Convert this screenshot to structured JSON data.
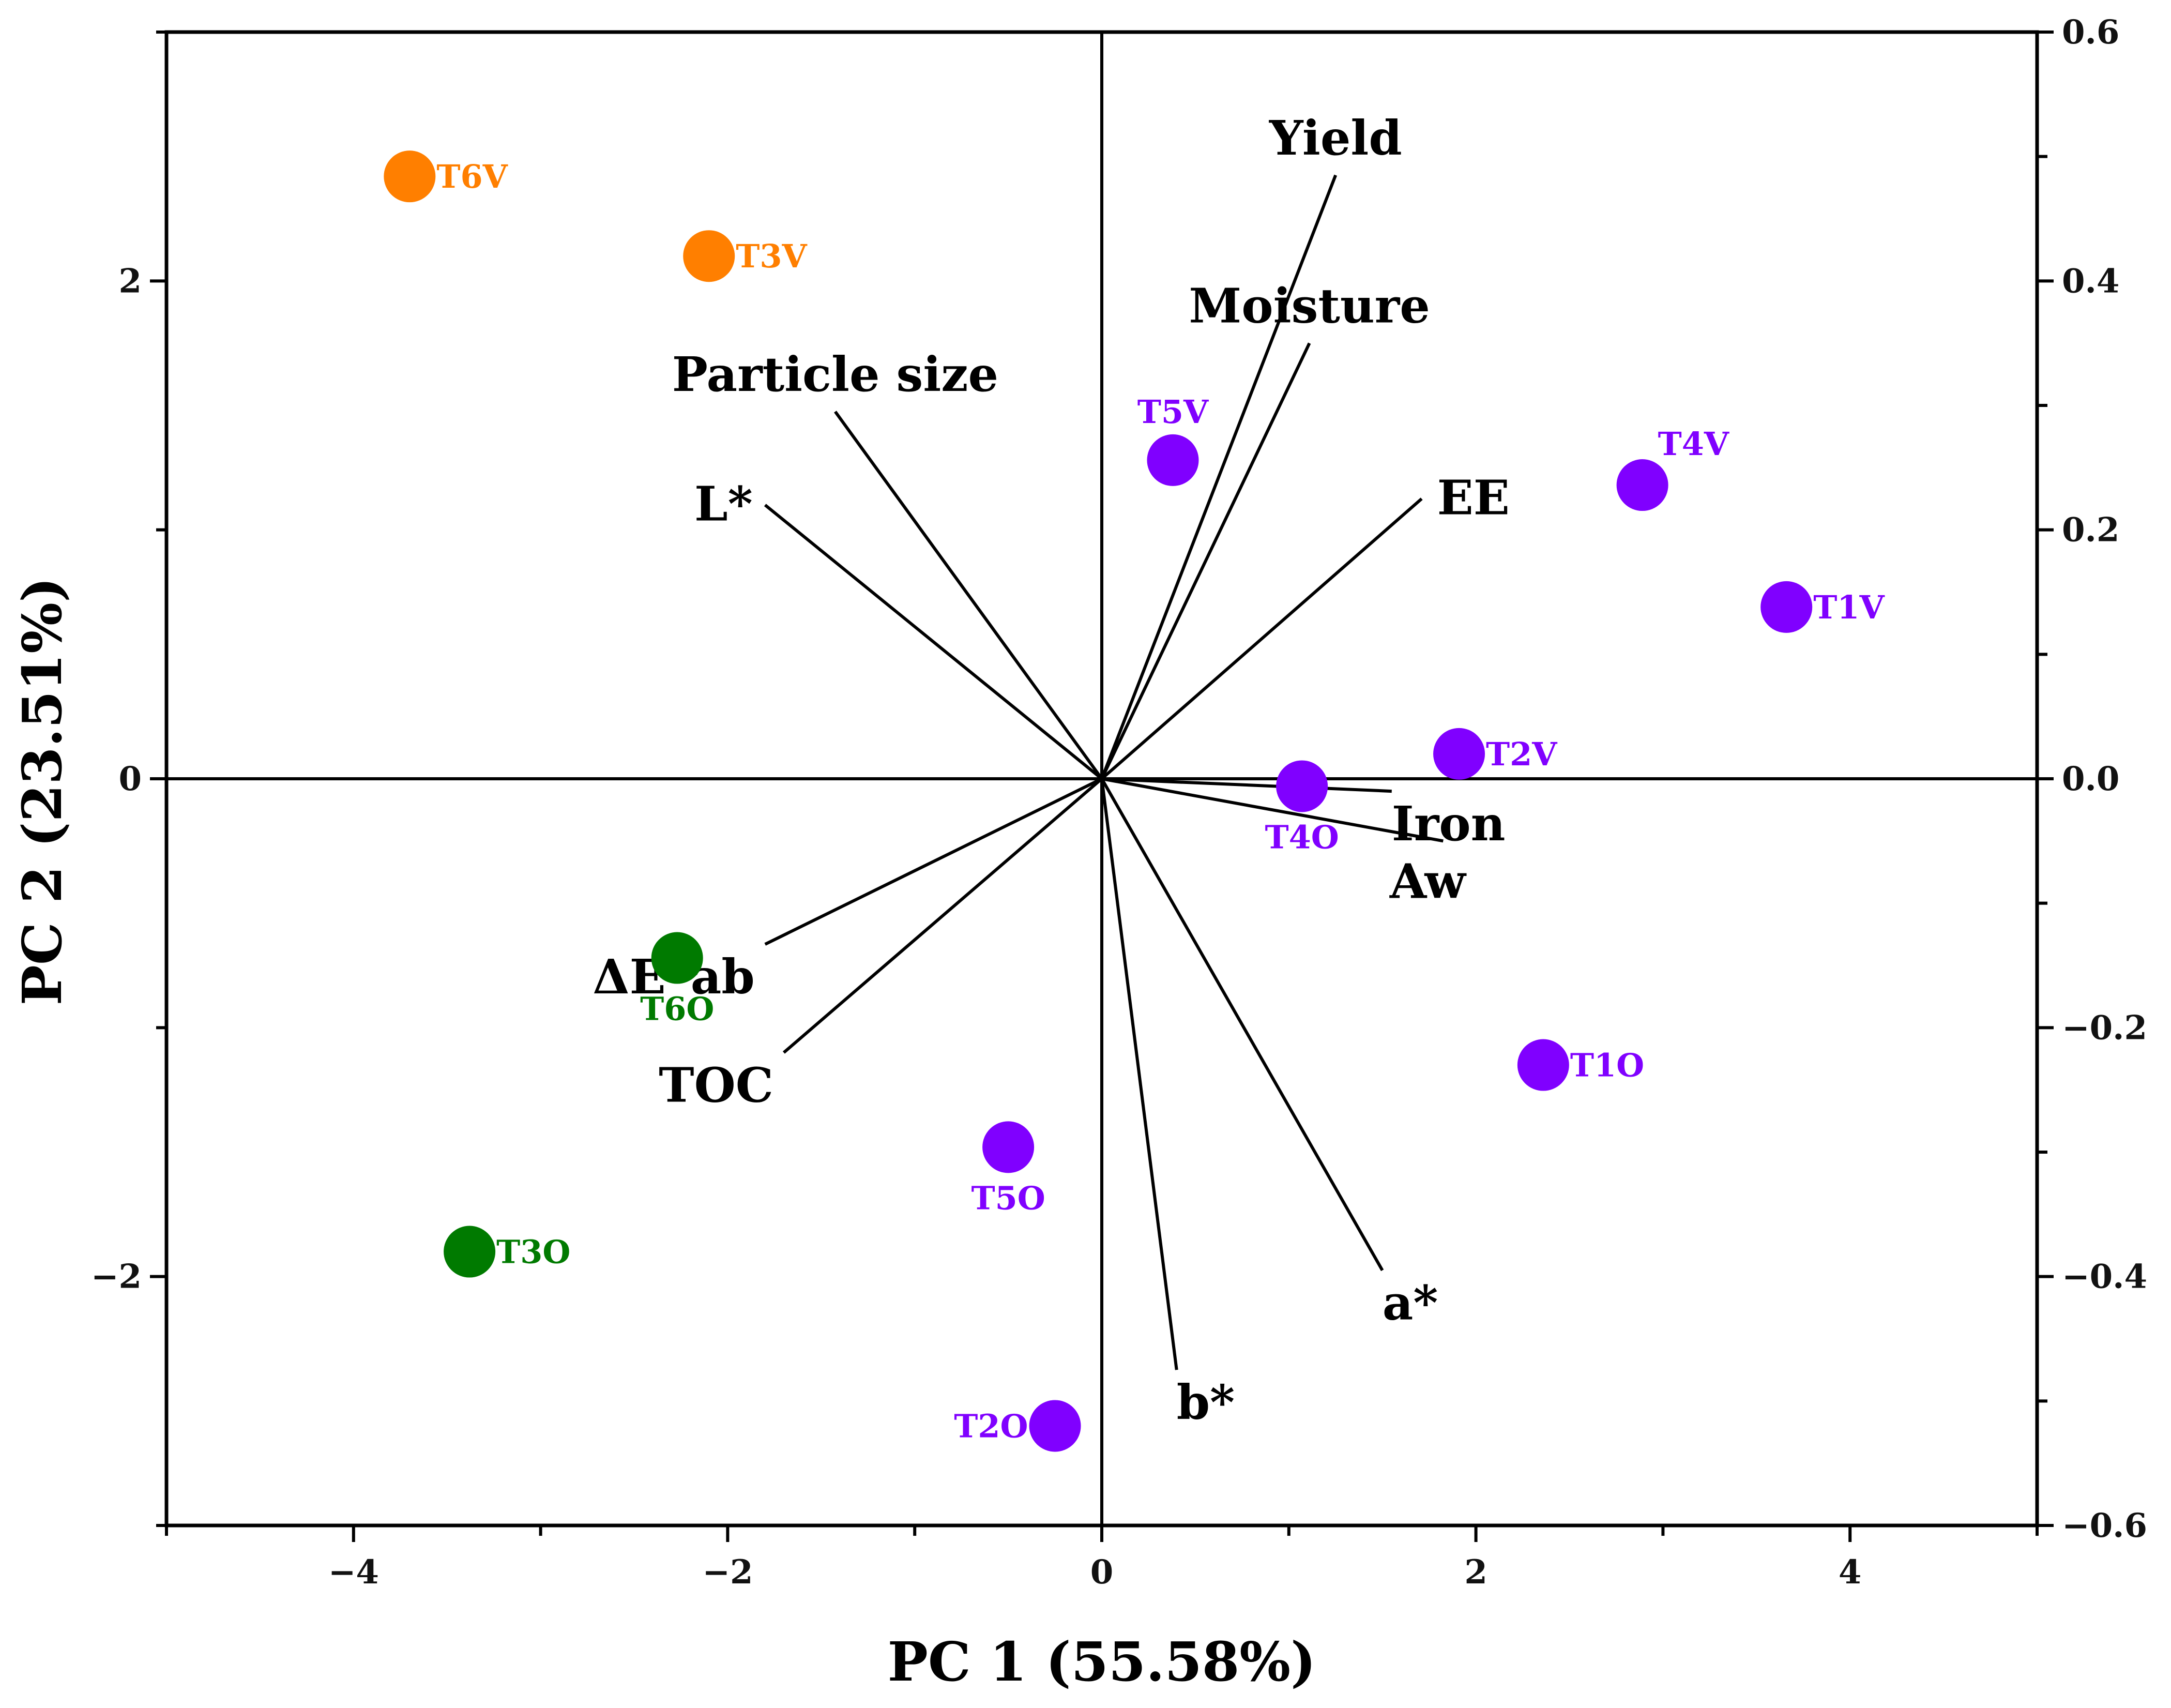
{
  "chart_data": {
    "type": "scatter",
    "subtype": "pca-biplot",
    "xlabel": "PC 1 (55.58%)",
    "ylabel": "PC 2 (23.51%)",
    "xlim": [
      -5,
      5
    ],
    "ylim": [
      -3,
      3
    ],
    "y2lim": [
      -0.6,
      0.6
    ],
    "x_ticks": [
      {
        "value": -4,
        "label": "−4"
      },
      {
        "value": -2,
        "label": "−2"
      },
      {
        "value": 0,
        "label": "0"
      },
      {
        "value": 2,
        "label": "2"
      },
      {
        "value": 4,
        "label": "4"
      }
    ],
    "y_ticks": [
      {
        "value": -2,
        "label": "−2"
      },
      {
        "value": 0,
        "label": "0"
      },
      {
        "value": 2,
        "label": "2"
      }
    ],
    "y2_ticks": [
      {
        "value": -0.6,
        "label": "−0.6"
      },
      {
        "value": -0.4,
        "label": "−0.4"
      },
      {
        "value": -0.2,
        "label": "−0.2"
      },
      {
        "value": 0.0,
        "label": "0.0"
      },
      {
        "value": 0.2,
        "label": "0.2"
      },
      {
        "value": 0.4,
        "label": "0.4"
      },
      {
        "value": 0.6,
        "label": "0.6"
      }
    ],
    "colors": {
      "purple": "#8000ff",
      "orange": "#ff7f00",
      "green": "#007a00",
      "axis": "#000000"
    },
    "scores": [
      {
        "name": "T6V",
        "x": -3.7,
        "y": 2.42,
        "color": "orange",
        "label_pos": "right"
      },
      {
        "name": "T3V",
        "x": -2.1,
        "y": 2.1,
        "color": "orange",
        "label_pos": "right"
      },
      {
        "name": "T5V",
        "x": 0.38,
        "y": 1.28,
        "color": "purple",
        "label_pos": "above"
      },
      {
        "name": "T4V",
        "x": 2.89,
        "y": 1.18,
        "color": "purple",
        "label_pos": "above-right"
      },
      {
        "name": "T1V",
        "x": 3.66,
        "y": 0.69,
        "color": "purple",
        "label_pos": "right"
      },
      {
        "name": "T2V",
        "x": 1.91,
        "y": 0.1,
        "color": "purple",
        "label_pos": "right"
      },
      {
        "name": "T4O",
        "x": 1.07,
        "y": -0.03,
        "color": "purple",
        "label_pos": "below"
      },
      {
        "name": "T1O",
        "x": 2.36,
        "y": -1.15,
        "color": "purple",
        "label_pos": "right"
      },
      {
        "name": "T6O",
        "x": -2.27,
        "y": -0.72,
        "color": "green",
        "label_pos": "below"
      },
      {
        "name": "T5O",
        "x": -0.5,
        "y": -1.48,
        "color": "purple",
        "label_pos": "below"
      },
      {
        "name": "T3O",
        "x": -3.38,
        "y": -1.9,
        "color": "green",
        "label_pos": "right"
      },
      {
        "name": "T2O",
        "x": -0.25,
        "y": -2.6,
        "color": "purple",
        "label_pos": "left"
      }
    ],
    "loadings": [
      {
        "name": "Yield",
        "x": 0.25,
        "y": 0.485,
        "label_pos": "above"
      },
      {
        "name": "Moisture",
        "x": 0.222,
        "y": 0.35,
        "label_pos": "above"
      },
      {
        "name": "EE",
        "x": 0.342,
        "y": 0.225,
        "label_pos": "right"
      },
      {
        "name": "Iron",
        "x": 0.31,
        "y": -0.01,
        "label_pos": "below-right"
      },
      {
        "name": "Aw",
        "x": 0.365,
        "y": -0.05,
        "label_pos": "below"
      },
      {
        "name": "a*",
        "x": 0.3,
        "y": -0.395,
        "label_pos": "below-right"
      },
      {
        "name": "b*",
        "x": 0.08,
        "y": -0.475,
        "label_pos": "below-right"
      },
      {
        "name": "TOC",
        "x": -0.34,
        "y": -0.22,
        "label_pos": "below-left"
      },
      {
        "name": "ΔE*ab",
        "x": -0.36,
        "y": -0.133,
        "label_pos": "below-left"
      },
      {
        "name": "L*",
        "x": -0.36,
        "y": 0.22,
        "label_pos": "left"
      },
      {
        "name": "Particle size",
        "x": -0.285,
        "y": 0.295,
        "label_pos": "above"
      }
    ]
  }
}
